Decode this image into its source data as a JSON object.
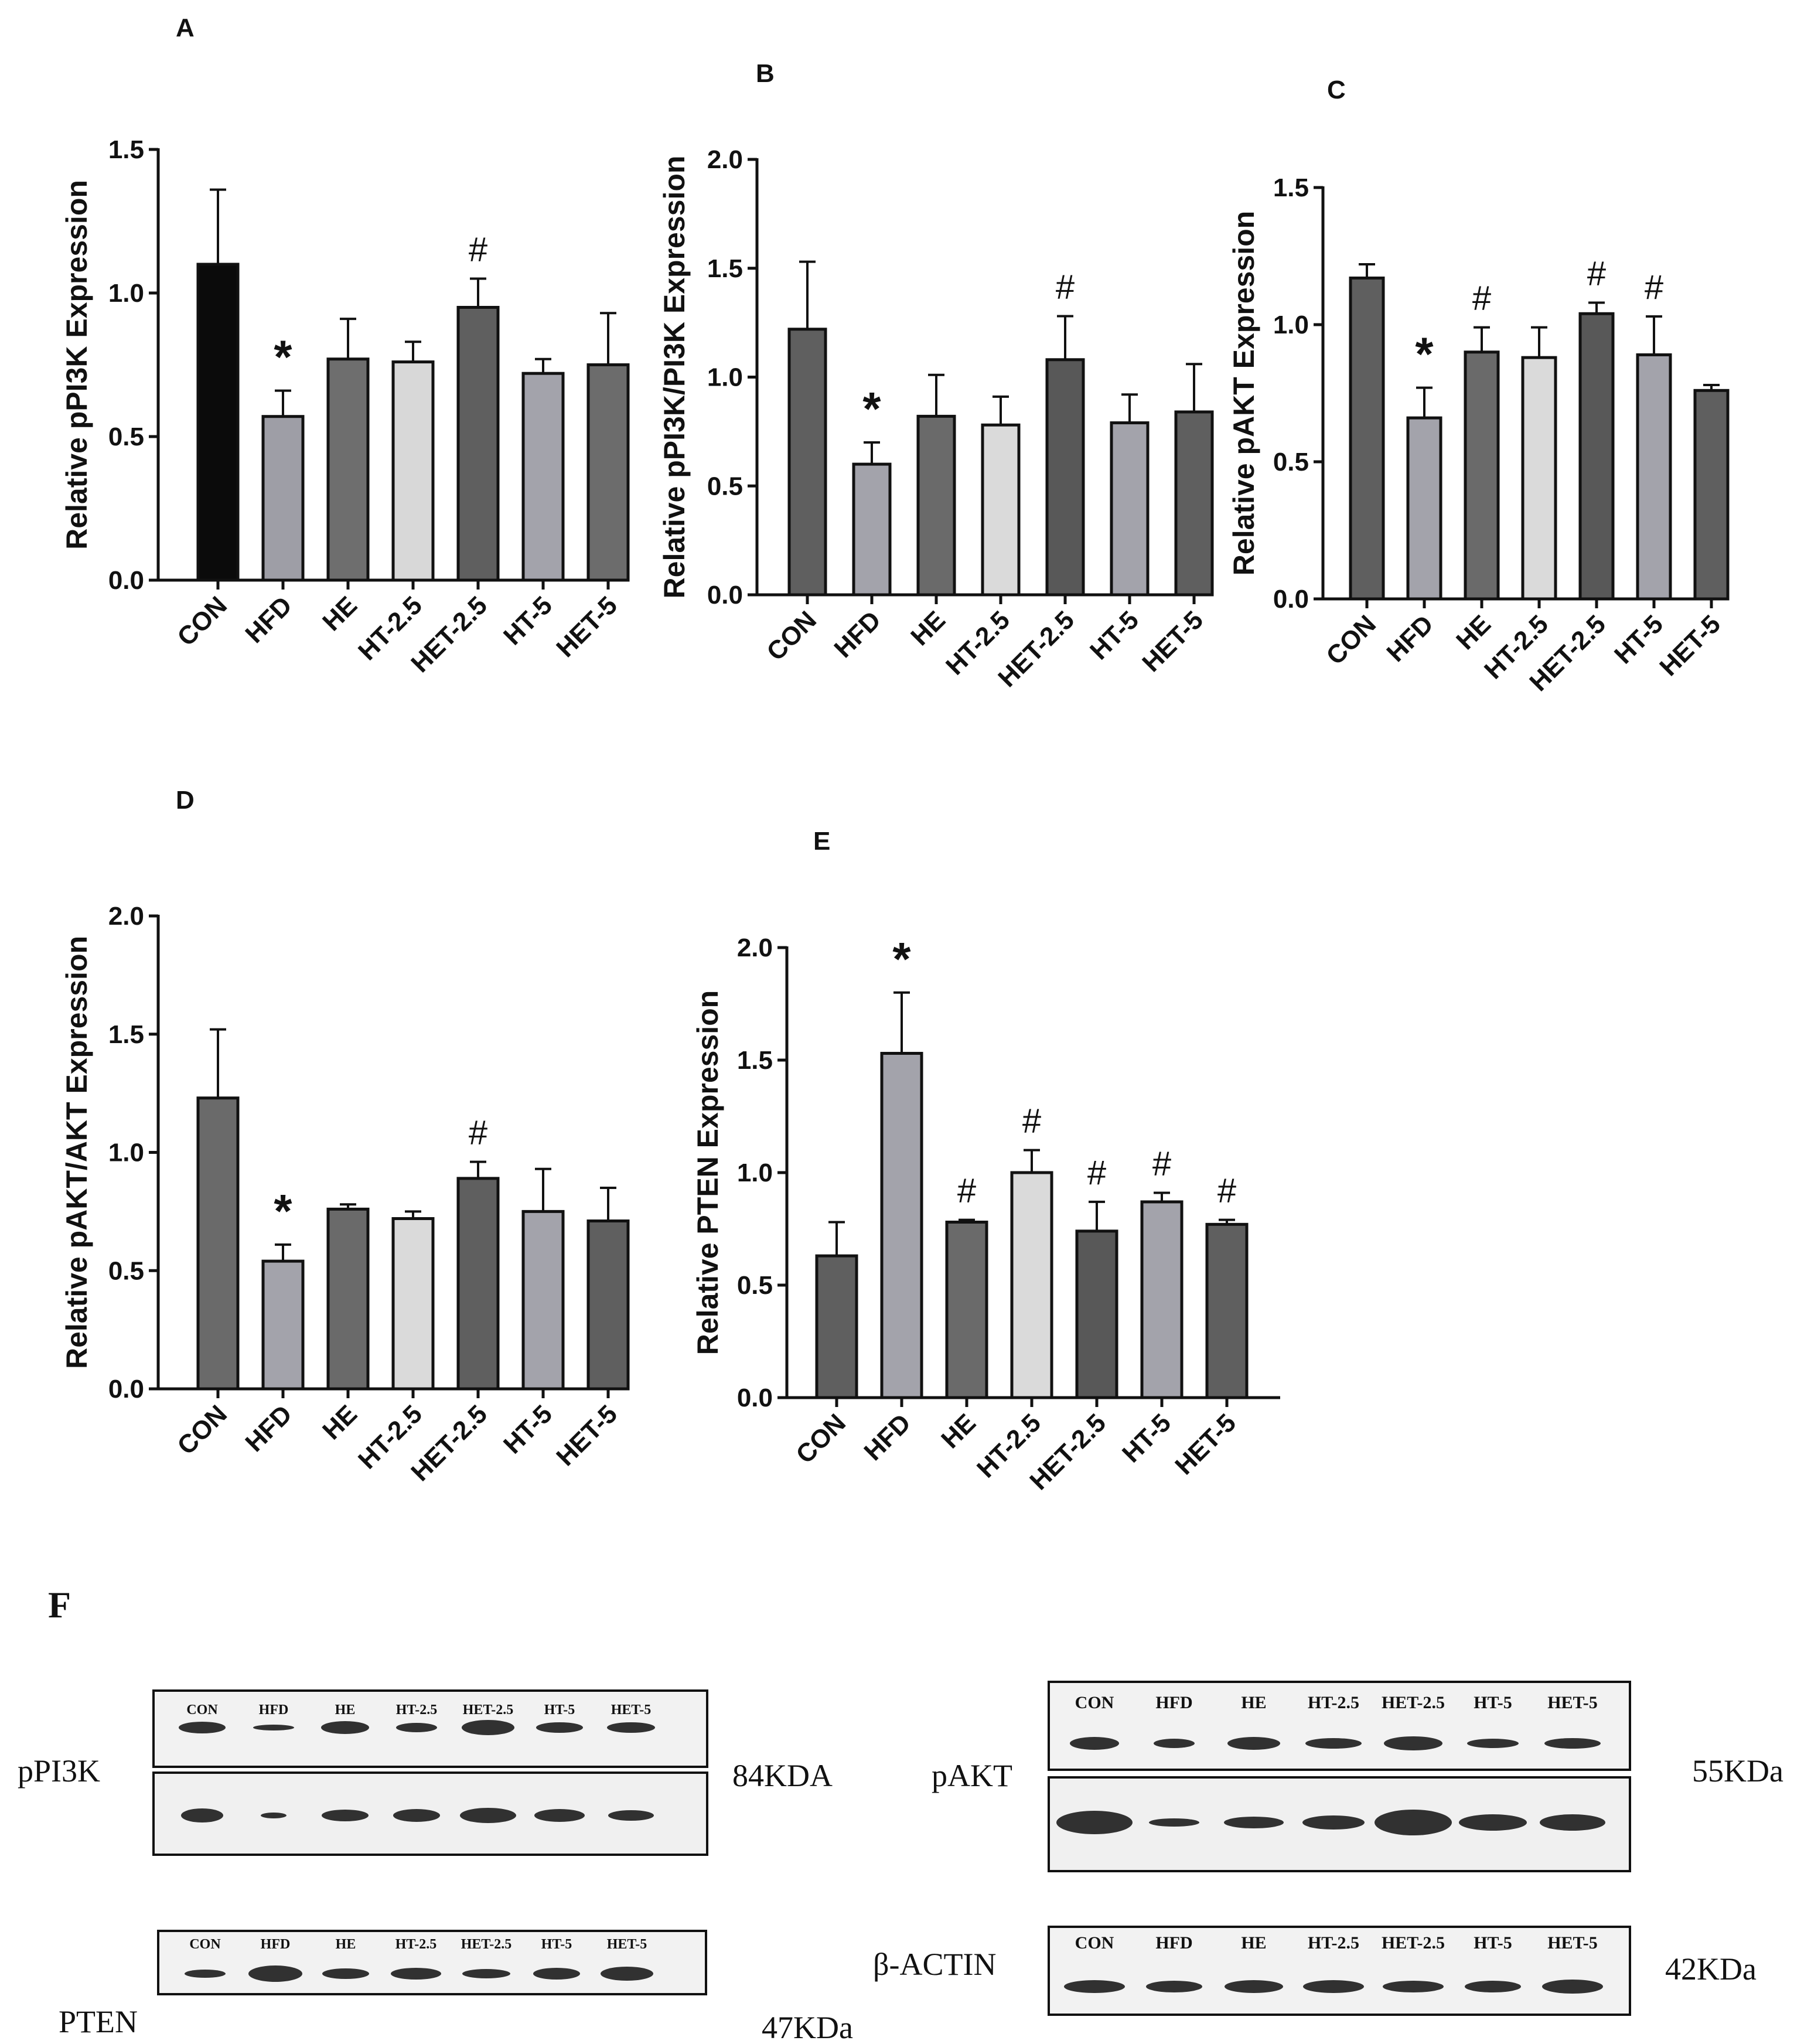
{
  "categories": [
    "CON",
    "HFD",
    "HE",
    "HT-2.5",
    "HET-2.5",
    "HT-5",
    "HET-5"
  ],
  "chart_data": [
    {
      "panel": "A",
      "type": "bar",
      "ylabel": "Relative pPI3K Expression",
      "ylim": [
        0,
        1.5
      ],
      "ticks": [
        "0.0",
        "0.5",
        "1.0",
        "1.5"
      ],
      "values": [
        1.1,
        0.57,
        0.77,
        0.76,
        0.95,
        0.72,
        0.75
      ],
      "errors": [
        0.26,
        0.09,
        0.14,
        0.07,
        0.1,
        0.05,
        0.18
      ],
      "colors": [
        "#0b0b0b",
        "#9e9ea6",
        "#6e6e6e",
        "#d8d8d8",
        "#5f5f5f",
        "#a3a3ab",
        "#6c6c6c"
      ],
      "annotations": [
        "",
        "*",
        "",
        "",
        "#",
        "",
        ""
      ]
    },
    {
      "panel": "B",
      "type": "bar",
      "ylabel": "Relative pPI3K/PI3K Expression",
      "ylim": [
        0,
        2.0
      ],
      "ticks": [
        "0.0",
        "0.5",
        "1.0",
        "1.5",
        "2.0"
      ],
      "values": [
        1.22,
        0.6,
        0.82,
        0.78,
        1.08,
        0.79,
        0.84
      ],
      "errors": [
        0.31,
        0.1,
        0.19,
        0.13,
        0.2,
        0.13,
        0.22
      ],
      "colors": [
        "#5f5f5f",
        "#a3a3ab",
        "#6a6a6a",
        "#dadada",
        "#585858",
        "#a3a3ab",
        "#5f5f5f"
      ],
      "annotations": [
        "",
        "*",
        "",
        "",
        "#",
        "",
        ""
      ]
    },
    {
      "panel": "C",
      "type": "bar",
      "ylabel": "Relative pAKT Expression",
      "ylim": [
        0,
        1.5
      ],
      "ticks": [
        "0.0",
        "0.5",
        "1.0",
        "1.5"
      ],
      "values": [
        1.17,
        0.66,
        0.9,
        0.88,
        1.04,
        0.89,
        0.76
      ],
      "errors": [
        0.05,
        0.11,
        0.09,
        0.11,
        0.04,
        0.14,
        0.02
      ],
      "colors": [
        "#5f5f5f",
        "#a3a3ab",
        "#6a6a6a",
        "#dadada",
        "#585858",
        "#a3a3ab",
        "#5f5f5f"
      ],
      "annotations": [
        "",
        "*",
        "#",
        "",
        "#",
        "#",
        ""
      ]
    },
    {
      "panel": "D",
      "type": "bar",
      "ylabel": "Relative pAKT/AKT Expression",
      "ylim": [
        0,
        2.0
      ],
      "ticks": [
        "0.0",
        "0.5",
        "1.0",
        "1.5",
        "2.0"
      ],
      "values": [
        1.23,
        0.54,
        0.76,
        0.72,
        0.89,
        0.75,
        0.71
      ],
      "errors": [
        0.29,
        0.07,
        0.02,
        0.03,
        0.07,
        0.18,
        0.14
      ],
      "colors": [
        "#6a6a6a",
        "#a3a3ab",
        "#6a6a6a",
        "#dadada",
        "#5f5f5f",
        "#a3a3ab",
        "#5f5f5f"
      ],
      "annotations": [
        "",
        "*",
        "",
        "",
        "#",
        "",
        ""
      ]
    },
    {
      "panel": "E",
      "type": "bar",
      "ylabel": "Relative PTEN Expression",
      "ylim": [
        0,
        2.0
      ],
      "ticks": [
        "0.0",
        "0.5",
        "1.0",
        "1.5",
        "2.0"
      ],
      "values": [
        0.63,
        1.53,
        0.78,
        1.0,
        0.74,
        0.87,
        0.77
      ],
      "errors": [
        0.15,
        0.27,
        0.01,
        0.1,
        0.13,
        0.04,
        0.02
      ],
      "colors": [
        "#5f5f5f",
        "#a3a3ab",
        "#6a6a6a",
        "#dadada",
        "#585858",
        "#a3a3ab",
        "#5f5f5f"
      ],
      "annotations": [
        "",
        "*",
        "#",
        "#",
        "#",
        "#",
        "#"
      ]
    }
  ],
  "blots": {
    "panel": "F",
    "ppi3k": {
      "label": "pPI3K",
      "size": "84KDA",
      "lanes": [
        "CON",
        "HFD",
        "HE",
        "HT-2.5",
        "HET-2.5",
        "HT-5",
        "HET-5"
      ]
    },
    "pten": {
      "label": "PTEN",
      "size": "47KDa",
      "lanes": [
        "CON",
        "HFD",
        "HE",
        "HT-2.5",
        "HET-2.5",
        "HT-5",
        "HET-5"
      ]
    },
    "pakt": {
      "label": "pAKT",
      "size": "55KDa",
      "lanes": [
        "CON",
        "HFD",
        "HE",
        "HT-2.5",
        "HET-2.5",
        "HT-5",
        "HET-5"
      ]
    },
    "actin": {
      "label": "β-ACTIN",
      "size": "42KDa",
      "lanes": [
        "CON",
        "HFD",
        "HE",
        "HT-2.5",
        "HET-2.5",
        "HT-5",
        "HET-5"
      ]
    }
  }
}
